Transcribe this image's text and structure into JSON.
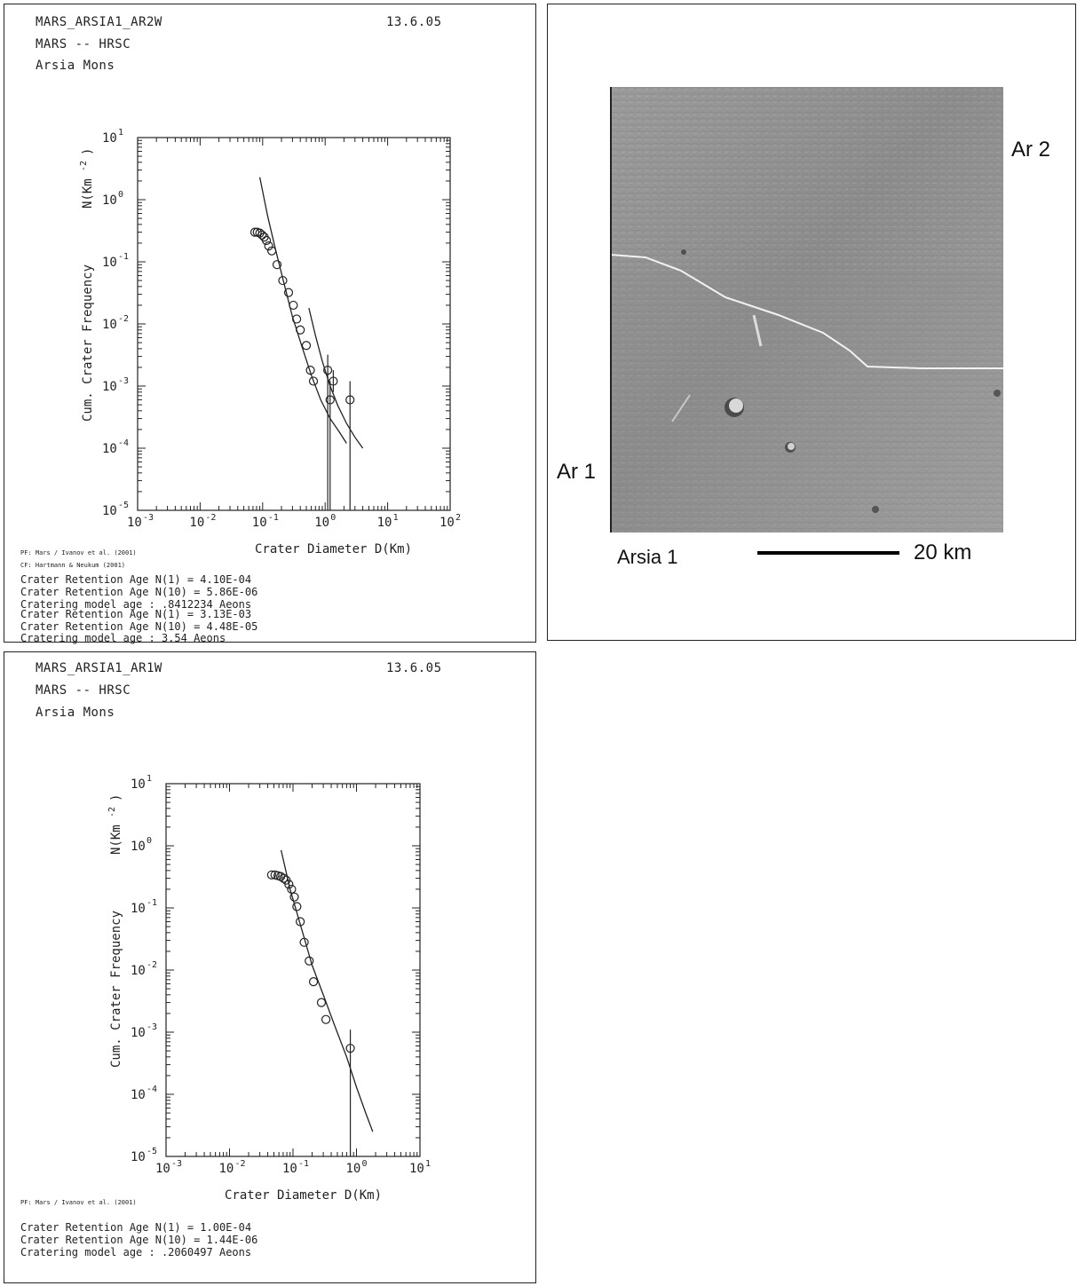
{
  "panels": {
    "ar2": {
      "title": "MARS_ARSIA1_AR2W",
      "date": "13.6.05",
      "subtitle": "MARS -- HRSC",
      "region": "Arsia Mons",
      "pf_note": "PF: Mars / Ivanov et al. (2001)",
      "cf_note": "CF: Hartmann & Neukum (2001)",
      "results": [
        "Crater Retention Age N(1) = 4.10E-04",
        "Crater Retention Age N(10) = 5.86E-06",
        "Cratering model age       : .8412234 Aeons",
        "Crater Retention Age N(1) = 3.13E-03",
        "Crater Retention Age N(10) = 4.48E-05",
        "Cratering model age       : 3.54 Aeons"
      ]
    },
    "ar1": {
      "title": "MARS_ARSIA1_AR1W",
      "date": "13.6.05",
      "subtitle": "MARS -- HRSC",
      "region": "Arsia Mons",
      "pf_note": "PF: Mars / Ivanov et al. (2001)",
      "results": [
        "Crater Retention Age N(1) = 1.00E-04",
        "Crater Retention Age N(10) = 1.44E-06",
        "Cratering model age       : .2060497 Aeons"
      ]
    }
  },
  "image_panel": {
    "label_ar2": "Ar 2",
    "label_ar1": "Ar 1",
    "label_arsia": "Arsia 1",
    "scale_label": "20 km"
  },
  "chart_data": [
    {
      "type": "scatter",
      "xlabel": "Crater Diameter D(Km)",
      "ylabel": "Cum. Crater Frequency",
      "ylabel_unit": "N(Km",
      "ylabel_exp": "-2",
      "xscale": "log",
      "yscale": "log",
      "xlim": [
        0.001,
        100
      ],
      "ylim": [
        1e-05,
        10
      ],
      "x_ticks": [
        {
          "value": 0.001,
          "base": "10",
          "exp": "-3"
        },
        {
          "value": 0.01,
          "base": "10",
          "exp": "-2"
        },
        {
          "value": 0.1,
          "base": "10",
          "exp": "-1"
        },
        {
          "value": 1,
          "base": "10",
          "exp": "0"
        },
        {
          "value": 10,
          "base": "10",
          "exp": "1"
        },
        {
          "value": 100,
          "base": "10",
          "exp": "2"
        }
      ],
      "y_ticks": [
        {
          "value": 1e-05,
          "base": "10",
          "exp": "-5"
        },
        {
          "value": 0.0001,
          "base": "10",
          "exp": "-4"
        },
        {
          "value": 0.001,
          "base": "10",
          "exp": "-3"
        },
        {
          "value": 0.01,
          "base": "10",
          "exp": "-2"
        },
        {
          "value": 0.1,
          "base": "10",
          "exp": "-1"
        },
        {
          "value": 1,
          "base": "10",
          "exp": "0"
        },
        {
          "value": 10,
          "base": "10",
          "exp": "1"
        }
      ],
      "points": [
        {
          "x": 0.075,
          "y": 0.3
        },
        {
          "x": 0.082,
          "y": 0.3
        },
        {
          "x": 0.09,
          "y": 0.29
        },
        {
          "x": 0.098,
          "y": 0.27
        },
        {
          "x": 0.106,
          "y": 0.25
        },
        {
          "x": 0.115,
          "y": 0.22
        },
        {
          "x": 0.125,
          "y": 0.18
        },
        {
          "x": 0.14,
          "y": 0.15
        },
        {
          "x": 0.17,
          "y": 0.09
        },
        {
          "x": 0.21,
          "y": 0.05
        },
        {
          "x": 0.26,
          "y": 0.032
        },
        {
          "x": 0.31,
          "y": 0.02
        },
        {
          "x": 0.35,
          "y": 0.012
        },
        {
          "x": 0.4,
          "y": 0.008
        },
        {
          "x": 0.5,
          "y": 0.0045
        },
        {
          "x": 0.58,
          "y": 0.0018
        },
        {
          "x": 0.65,
          "y": 0.0012
        },
        {
          "x": 1.1,
          "y": 0.0018,
          "err": [
            1e-05,
            0.0032
          ]
        },
        {
          "x": 1.2,
          "y": 0.0006,
          "err": [
            1e-05,
            0.0012
          ]
        },
        {
          "x": 1.35,
          "y": 0.0012,
          "err": [
            0.0008,
            0.0018
          ]
        },
        {
          "x": 2.5,
          "y": 0.0006,
          "err": [
            1e-05,
            0.0012
          ]
        }
      ],
      "curves": [
        {
          "name": "",
          "x": [
            0.09,
            0.12,
            0.16,
            0.22,
            0.3,
            0.42,
            0.6,
            0.85,
            1.2,
            1.7,
            2.2
          ],
          "y": [
            2.3,
            0.55,
            0.16,
            0.045,
            0.013,
            0.0045,
            0.0015,
            0.0006,
            0.0003,
            0.00018,
            0.00012
          ]
        },
        {
          "name": "",
          "x": [
            0.55,
            0.7,
            0.9,
            1.2,
            1.6,
            2.2,
            3.0,
            4.0
          ],
          "y": [
            0.018,
            0.0065,
            0.0025,
            0.001,
            0.00048,
            0.00025,
            0.00015,
            0.0001
          ]
        }
      ]
    },
    {
      "type": "scatter",
      "xlabel": "Crater Diameter D(Km)",
      "ylabel": "Cum. Crater Frequency",
      "ylabel_unit": "N(Km",
      "ylabel_exp": "-2",
      "xscale": "log",
      "yscale": "log",
      "xlim": [
        0.001,
        10
      ],
      "ylim": [
        1e-05,
        10
      ],
      "x_ticks": [
        {
          "value": 0.001,
          "base": "10",
          "exp": "-3"
        },
        {
          "value": 0.01,
          "base": "10",
          "exp": "-2"
        },
        {
          "value": 0.1,
          "base": "10",
          "exp": "-1"
        },
        {
          "value": 1,
          "base": "10",
          "exp": "0"
        },
        {
          "value": 10,
          "base": "10",
          "exp": "1"
        }
      ],
      "y_ticks": [
        {
          "value": 1e-05,
          "base": "10",
          "exp": "-5"
        },
        {
          "value": 0.0001,
          "base": "10",
          "exp": "-4"
        },
        {
          "value": 0.001,
          "base": "10",
          "exp": "-3"
        },
        {
          "value": 0.01,
          "base": "10",
          "exp": "-2"
        },
        {
          "value": 0.1,
          "base": "10",
          "exp": "-1"
        },
        {
          "value": 1,
          "base": "10",
          "exp": "0"
        },
        {
          "value": 10,
          "base": "10",
          "exp": "1"
        }
      ],
      "points": [
        {
          "x": 0.046,
          "y": 0.34
        },
        {
          "x": 0.052,
          "y": 0.34
        },
        {
          "x": 0.058,
          "y": 0.33
        },
        {
          "x": 0.064,
          "y": 0.32
        },
        {
          "x": 0.071,
          "y": 0.3
        },
        {
          "x": 0.078,
          "y": 0.28
        },
        {
          "x": 0.086,
          "y": 0.24
        },
        {
          "x": 0.095,
          "y": 0.2
        },
        {
          "x": 0.105,
          "y": 0.15
        },
        {
          "x": 0.115,
          "y": 0.105
        },
        {
          "x": 0.13,
          "y": 0.06
        },
        {
          "x": 0.15,
          "y": 0.028
        },
        {
          "x": 0.18,
          "y": 0.014
        },
        {
          "x": 0.21,
          "y": 0.0065
        },
        {
          "x": 0.28,
          "y": 0.003
        },
        {
          "x": 0.33,
          "y": 0.0016
        },
        {
          "x": 0.8,
          "y": 0.00055,
          "err": [
            1e-05,
            0.0011
          ]
        }
      ],
      "curves": [
        {
          "name": "",
          "x": [
            0.065,
            0.09,
            0.13,
            0.2,
            0.3,
            0.45,
            0.7,
            1.0,
            1.4,
            1.8
          ],
          "y": [
            0.85,
            0.2,
            0.055,
            0.012,
            0.004,
            0.0013,
            0.0004,
            0.00013,
            5e-05,
            2.5e-05
          ]
        }
      ]
    }
  ]
}
